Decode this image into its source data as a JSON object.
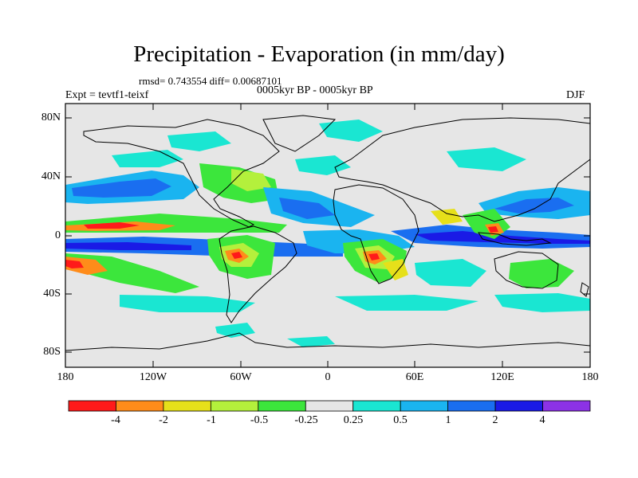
{
  "title": "Precipitation - Evaporation (in mm/day)",
  "stats_line": "rmsd= 0.743554 diff= 0.00687101",
  "period": "0005kyr BP - 0005kyr BP",
  "experiment": "Expt = tevtf1-teixf",
  "season": "DJF",
  "map": {
    "lat_labels": [
      "80N",
      "40N",
      "0",
      "40S",
      "80S"
    ],
    "lon_labels": [
      "180",
      "120W",
      "60W",
      "0",
      "60E",
      "120E",
      "180"
    ]
  },
  "colorbar": {
    "colors": [
      "#ff1a1a",
      "#ff8c1a",
      "#e6e01a",
      "#b4f03c",
      "#3ce63c",
      "#e6e6e6",
      "#1ae6d2",
      "#1ab4f0",
      "#1a6ef0",
      "#1a1ae6",
      "#8c32e6"
    ],
    "labels": [
      "-4",
      "-2",
      "-1",
      "-0.5",
      "-0.25",
      "0.25",
      "0.5",
      "1",
      "2",
      "4"
    ]
  }
}
